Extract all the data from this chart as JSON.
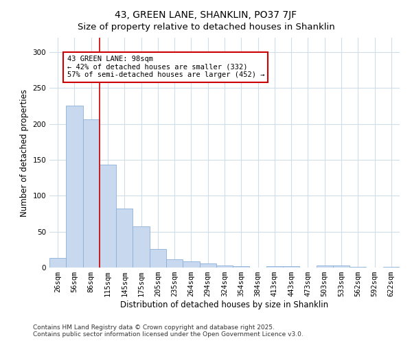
{
  "title": "43, GREEN LANE, SHANKLIN, PO37 7JF",
  "subtitle": "Size of property relative to detached houses in Shanklin",
  "xlabel": "Distribution of detached houses by size in Shanklin",
  "ylabel": "Number of detached properties",
  "bar_labels": [
    "26sqm",
    "56sqm",
    "86sqm",
    "115sqm",
    "145sqm",
    "175sqm",
    "205sqm",
    "235sqm",
    "264sqm",
    "294sqm",
    "324sqm",
    "354sqm",
    "384sqm",
    "413sqm",
    "443sqm",
    "473sqm",
    "503sqm",
    "533sqm",
    "562sqm",
    "592sqm",
    "622sqm"
  ],
  "bar_values": [
    13,
    225,
    206,
    143,
    82,
    57,
    26,
    11,
    9,
    6,
    3,
    2,
    0,
    2,
    2,
    0,
    3,
    3,
    1,
    0,
    1
  ],
  "bar_color": "#c8d8ee",
  "bar_edgecolor": "#8ab0d8",
  "background_color": "#ffffff",
  "plot_bg_color": "#ffffff",
  "grid_color": "#d0dce8",
  "ylim": [
    0,
    320
  ],
  "yticks": [
    0,
    50,
    100,
    150,
    200,
    250,
    300
  ],
  "vline_x": 2.5,
  "vline_color": "#cc0000",
  "annotation_title": "43 GREEN LANE: 98sqm",
  "annotation_line1": "← 42% of detached houses are smaller (332)",
  "annotation_line2": "57% of semi-detached houses are larger (452) →",
  "annotation_box_facecolor": "#ffffff",
  "annotation_box_edgecolor": "#cc0000",
  "footer_line1": "Contains HM Land Registry data © Crown copyright and database right 2025.",
  "footer_line2": "Contains public sector information licensed under the Open Government Licence v3.0.",
  "title_fontsize": 10,
  "axis_label_fontsize": 8.5,
  "tick_fontsize": 7.5,
  "annotation_fontsize": 7.5,
  "footer_fontsize": 6.5
}
